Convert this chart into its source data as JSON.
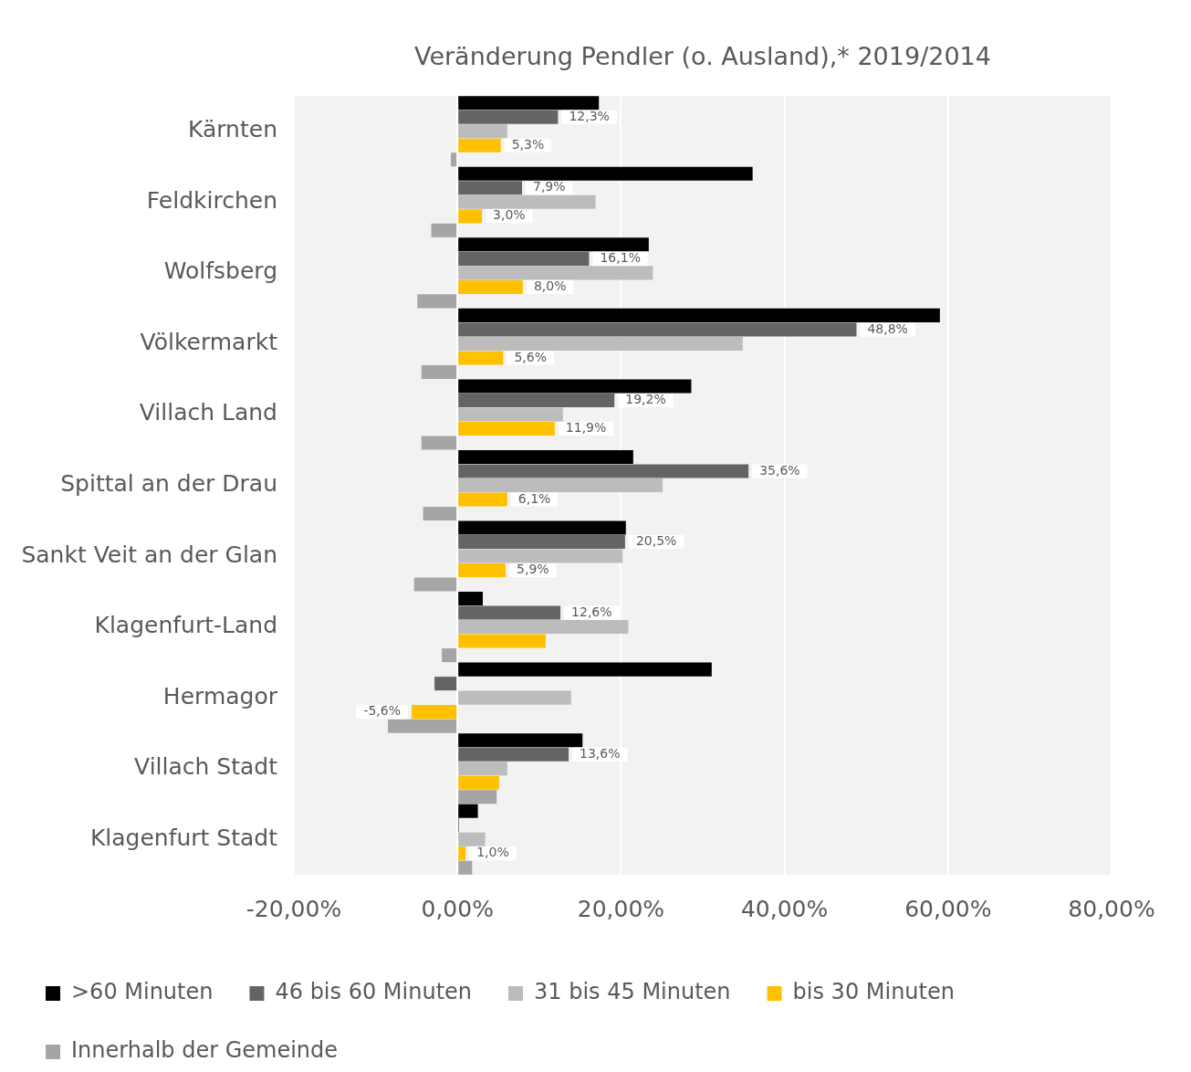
{
  "chart_data": {
    "type": "bar",
    "orientation": "horizontal",
    "title": "Veränderung Pendler (o. Ausland),* 2019/2014",
    "categories": [
      "Kärnten",
      "Feldkirchen",
      "Wolfsberg",
      "Völkermarkt",
      "Villach Land",
      "Spittal an der Drau",
      "Sankt Veit an der Glan",
      "Klagenfurt-Land",
      "Hermagor",
      "Villach Stadt",
      "Klagenfurt Stadt"
    ],
    "series": [
      {
        "name": ">60 Minuten",
        "color": "#000000",
        "values": [
          17.3,
          36.1,
          23.4,
          59.0,
          28.6,
          21.5,
          20.6,
          3.1,
          31.1,
          15.3,
          2.5
        ]
      },
      {
        "name": "46 bis 60 Minuten",
        "color": "#646464",
        "values": [
          12.3,
          7.9,
          16.1,
          48.8,
          19.2,
          35.6,
          20.5,
          12.6,
          -2.8,
          13.6,
          0.2
        ],
        "value_labels": [
          "12,3%",
          "7,9%",
          "16,1%",
          "48,8%",
          "19,2%",
          "35,6%",
          "20,5%",
          "12,6%",
          null,
          "13,6%",
          null
        ]
      },
      {
        "name": "31 bis 45 Minuten",
        "color": "#bcbcbc",
        "values": [
          6.1,
          16.9,
          23.9,
          34.9,
          12.9,
          25.1,
          20.2,
          20.9,
          13.9,
          6.1,
          3.4
        ]
      },
      {
        "name": "bis 30 Minuten",
        "color": "#ffc000",
        "values": [
          5.3,
          3.0,
          8.0,
          5.6,
          11.9,
          6.1,
          5.9,
          10.8,
          -5.6,
          5.1,
          1.0
        ],
        "value_labels": [
          "5,3%",
          "3,0%",
          "8,0%",
          "5,6%",
          "11,9%",
          "6,1%",
          "5,9%",
          null,
          "-5,6%",
          null,
          "1,0%"
        ]
      },
      {
        "name": "Innerhalb der Gemeinde",
        "color": "#a5a5a5",
        "values": [
          -0.8,
          -3.2,
          -4.9,
          -4.4,
          -4.4,
          -4.2,
          -5.3,
          -1.9,
          -8.5,
          4.8,
          1.8
        ]
      }
    ],
    "xlim": [
      -20,
      80
    ],
    "xticks": [
      {
        "value": -20,
        "label": "-20,00%"
      },
      {
        "value": 0,
        "label": "0,00%"
      },
      {
        "value": 20,
        "label": "20,00%"
      },
      {
        "value": 40,
        "label": "40,00%"
      },
      {
        "value": 60,
        "label": "60,00%"
      },
      {
        "value": 80,
        "label": "80,00%"
      }
    ],
    "grid": "x",
    "legend": "bottom"
  }
}
